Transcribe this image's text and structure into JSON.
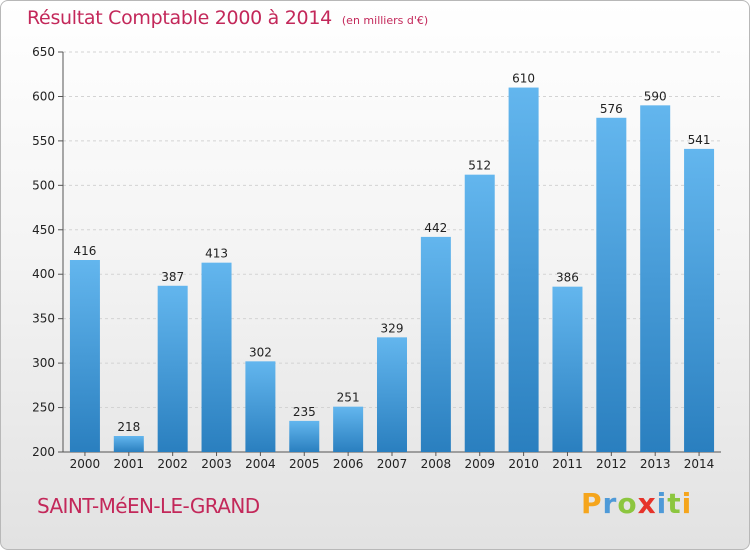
{
  "chart_data": {
    "type": "bar",
    "title": "Résultat Comptable 2000 à 2014",
    "unit_label": "(en milliers d'€)",
    "categories": [
      "2000",
      "2001",
      "2002",
      "2003",
      "2004",
      "2005",
      "2006",
      "2007",
      "2008",
      "2009",
      "2010",
      "2011",
      "2012",
      "2013",
      "2014"
    ],
    "values": [
      416,
      218,
      387,
      413,
      302,
      235,
      251,
      329,
      442,
      512,
      610,
      386,
      576,
      590,
      541
    ],
    "ylim": [
      200,
      650
    ],
    "yticks": [
      200,
      250,
      300,
      350,
      400,
      450,
      500,
      550,
      600,
      650
    ],
    "grid": true,
    "xlabel": "",
    "ylabel": ""
  },
  "place_name": "SAINT-MéEN-LE-GRAND",
  "logo": {
    "letters": [
      "P",
      "r",
      "o",
      "x",
      "i",
      "t",
      "i"
    ],
    "colors": [
      "#f5a51c",
      "#4e9ad8",
      "#8cc63f",
      "#e6332a",
      "#4e9ad8",
      "#8cc63f",
      "#f5a51c"
    ]
  },
  "colors": {
    "bar_light": "#63b6ee",
    "bar_dark": "#2a7fbf",
    "title": "#c3285a"
  }
}
